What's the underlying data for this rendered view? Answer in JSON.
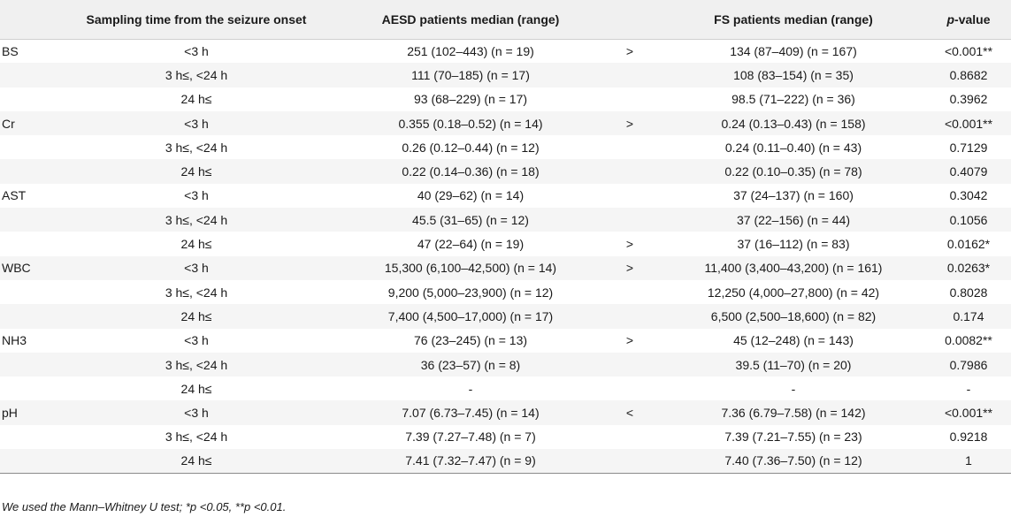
{
  "table": {
    "headers": {
      "parameter": "",
      "time": "Sampling time from the seizure onset",
      "aesd": "AESD patients median (range)",
      "cmp": "",
      "fs": "FS patients median (range)",
      "p_italic": "p",
      "p_rest": "-value"
    },
    "rows": [
      {
        "param": "BS",
        "time": "<3 h",
        "aesd": "251 (102–443) (n = 19)",
        "cmp": ">",
        "fs": "134 (87–409) (n = 167)",
        "p": "<0.001**"
      },
      {
        "param": "",
        "time": "3 h≤, <24 h",
        "aesd": "111 (70–185) (n = 17)",
        "cmp": "",
        "fs": "108 (83–154) (n = 35)",
        "p": "0.8682"
      },
      {
        "param": "",
        "time": "24 h≤",
        "aesd": "93 (68–229) (n = 17)",
        "cmp": "",
        "fs": "98.5 (71–222) (n = 36)",
        "p": "0.3962"
      },
      {
        "param": "Cr",
        "time": "<3 h",
        "aesd": "0.355 (0.18–0.52) (n = 14)",
        "cmp": ">",
        "fs": "0.24 (0.13–0.43) (n = 158)",
        "p": "<0.001**"
      },
      {
        "param": "",
        "time": "3 h≤, <24 h",
        "aesd": "0.26 (0.12–0.44) (n = 12)",
        "cmp": "",
        "fs": "0.24 (0.11–0.40) (n = 43)",
        "p": "0.7129"
      },
      {
        "param": "",
        "time": "24 h≤",
        "aesd": "0.22 (0.14–0.36) (n = 18)",
        "cmp": "",
        "fs": "0.22 (0.10–0.35) (n = 78)",
        "p": "0.4079"
      },
      {
        "param": "AST",
        "time": "<3 h",
        "aesd": "40 (29–62) (n = 14)",
        "cmp": "",
        "fs": "37 (24–137) (n = 160)",
        "p": "0.3042"
      },
      {
        "param": "",
        "time": "3 h≤, <24 h",
        "aesd": "45.5 (31–65) (n = 12)",
        "cmp": "",
        "fs": "37 (22–156) (n = 44)",
        "p": "0.1056"
      },
      {
        "param": "",
        "time": "24 h≤",
        "aesd": "47 (22–64) (n = 19)",
        "cmp": ">",
        "fs": "37 (16–112) (n = 83)",
        "p": "0.0162*"
      },
      {
        "param": "WBC",
        "time": "<3 h",
        "aesd": "15,300 (6,100–42,500) (n = 14)",
        "cmp": ">",
        "fs": "11,400 (3,400–43,200) (n = 161)",
        "p": "0.0263*"
      },
      {
        "param": "",
        "time": "3 h≤, <24 h",
        "aesd": "9,200 (5,000–23,900) (n = 12)",
        "cmp": "",
        "fs": "12,250 (4,000–27,800) (n = 42)",
        "p": "0.8028"
      },
      {
        "param": "",
        "time": "24 h≤",
        "aesd": "7,400 (4,500–17,000) (n = 17)",
        "cmp": "",
        "fs": "6,500 (2,500–18,600) (n = 82)",
        "p": "0.174"
      },
      {
        "param": "NH3",
        "time": "<3 h",
        "aesd": "76 (23–245) (n = 13)",
        "cmp": ">",
        "fs": "45 (12–248) (n = 143)",
        "p": "0.0082**"
      },
      {
        "param": "",
        "time": "3 h≤, <24 h",
        "aesd": "36 (23–57) (n = 8)",
        "cmp": "",
        "fs": "39.5 (11–70) (n = 20)",
        "p": "0.7986"
      },
      {
        "param": "",
        "time": "24 h≤",
        "aesd": "-",
        "cmp": "",
        "fs": "-",
        "p": "-"
      },
      {
        "param": "pH",
        "time": "<3 h",
        "aesd": "7.07 (6.73–7.45) (n = 14)",
        "cmp": "<",
        "fs": "7.36 (6.79–7.58) (n = 142)",
        "p": "<0.001**"
      },
      {
        "param": "",
        "time": "3 h≤, <24 h",
        "aesd": "7.39 (7.27–7.48) (n = 7)",
        "cmp": "",
        "fs": "7.39 (7.21–7.55) (n = 23)",
        "p": "0.9218"
      },
      {
        "param": "",
        "time": "24 h≤",
        "aesd": "7.41 (7.32–7.47) (n = 9)",
        "cmp": "",
        "fs": "7.40 (7.36–7.50) (n = 12)",
        "p": "1"
      }
    ]
  },
  "footnote": "We used the Mann–Whitney U test; *p <0.05, **p <0.01."
}
